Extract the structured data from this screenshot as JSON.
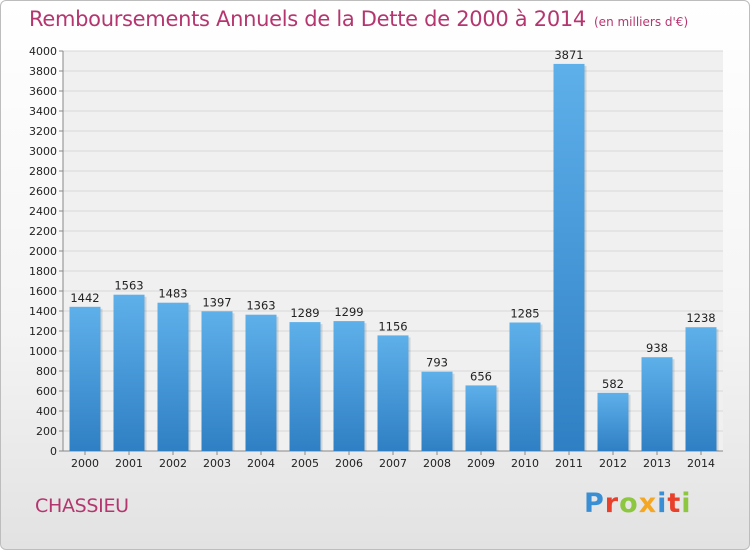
{
  "header": {
    "title": "Remboursements Annuels de la Dette de 2000 à 2014",
    "unit": "(en milliers d'€)"
  },
  "footer": {
    "city": "CHASSIEU",
    "logo_text": "Proxiti",
    "logo_colors": [
      "#3a8fd4",
      "#e8402a",
      "#8dc63f",
      "#f5a623",
      "#3a8fd4",
      "#e8402a",
      "#8dc63f"
    ]
  },
  "colors": {
    "bar_light": "#5eb0ea",
    "bar_dark": "#2f7fc4",
    "title": "#b5366f",
    "grid": "#d8d8d8"
  },
  "chart_data": {
    "type": "bar",
    "title": "Remboursements Annuels de la Dette de 2000 à 2014",
    "subtitle": "(en milliers d'€)",
    "xlabel": "",
    "ylabel": "",
    "categories": [
      "2000",
      "2001",
      "2002",
      "2003",
      "2004",
      "2005",
      "2006",
      "2007",
      "2008",
      "2009",
      "2010",
      "2011",
      "2012",
      "2013",
      "2014"
    ],
    "values": [
      1442,
      1563,
      1483,
      1397,
      1363,
      1289,
      1299,
      1156,
      793,
      656,
      1285,
      3871,
      582,
      938,
      1238
    ],
    "ylim": [
      0,
      4000
    ],
    "yticks": [
      0,
      200,
      400,
      600,
      800,
      1000,
      1200,
      1400,
      1600,
      1800,
      2000,
      2200,
      2400,
      2600,
      2800,
      3000,
      3200,
      3400,
      3600,
      3800,
      4000
    ],
    "grid": true,
    "legend": "none"
  }
}
